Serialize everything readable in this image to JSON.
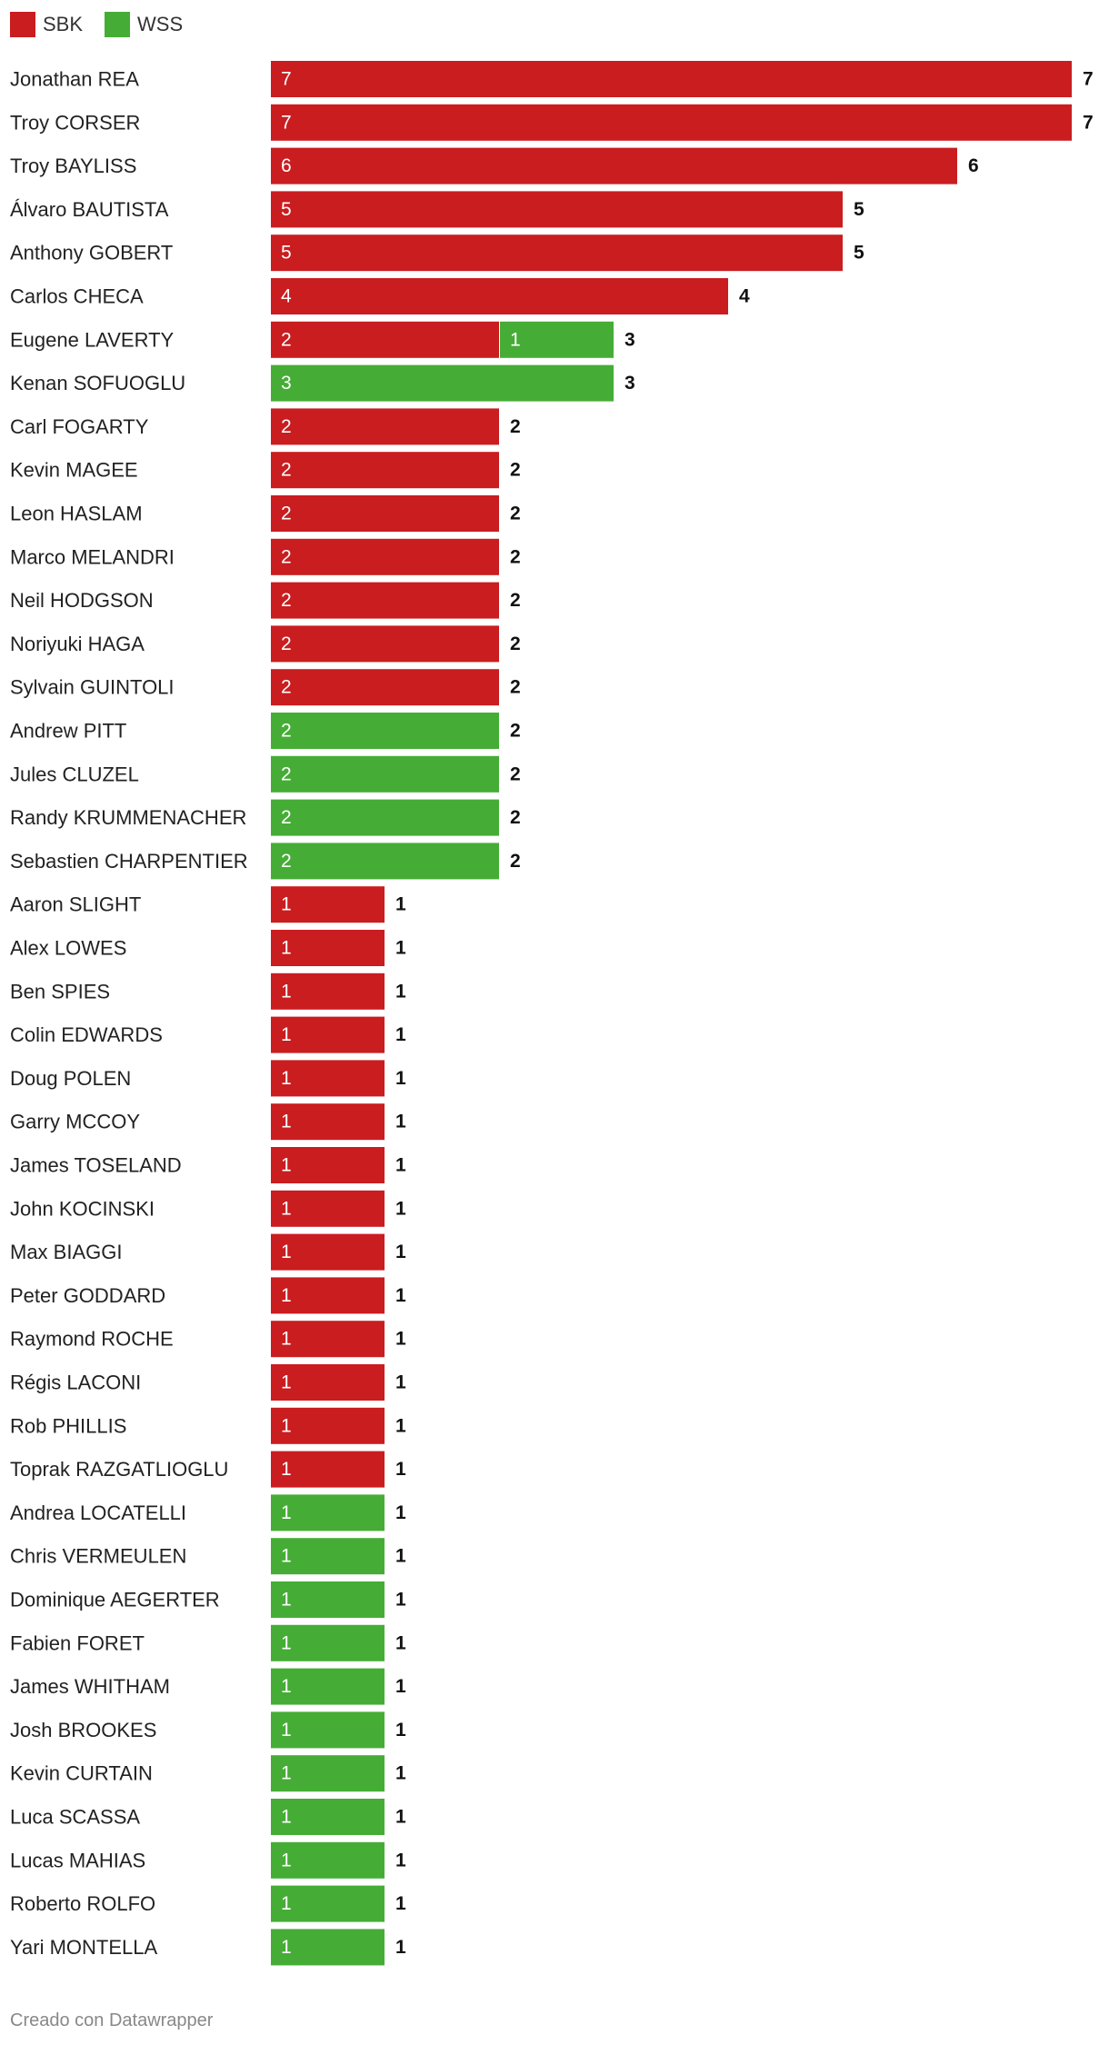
{
  "legend": [
    {
      "name": "SBK",
      "color": "#c91d20"
    },
    {
      "name": "WSS",
      "color": "#45ad35"
    }
  ],
  "footer": {
    "credit": "Creado con Datawrapper"
  },
  "chart_data": {
    "type": "bar",
    "orientation": "horizontal",
    "stacked": true,
    "categories": [
      "Jonathan REA",
      "Troy CORSER",
      "Troy BAYLISS",
      "Álvaro BAUTISTA",
      "Anthony GOBERT",
      "Carlos CHECA",
      "Eugene LAVERTY",
      "Kenan SOFUOGLU",
      "Carl FOGARTY",
      "Kevin MAGEE",
      "Leon HASLAM",
      "Marco MELANDRI",
      "Neil HODGSON",
      "Noriyuki HAGA",
      "Sylvain GUINTOLI",
      "Andrew PITT",
      "Jules CLUZEL",
      "Randy KRUMMENACHER",
      "Sebastien CHARPENTIER",
      "Aaron SLIGHT",
      "Alex LOWES",
      "Ben SPIES",
      "Colin EDWARDS",
      "Doug POLEN",
      "Garry MCCOY",
      "James TOSELAND",
      "John KOCINSKI",
      "Max BIAGGI",
      "Peter GODDARD",
      "Raymond ROCHE",
      "Régis LACONI",
      "Rob PHILLIS",
      "Toprak RAZGATLIOGLU",
      "Andrea LOCATELLI",
      "Chris VERMEULEN",
      "Dominique AEGERTER",
      "Fabien FORET",
      "James WHITHAM",
      "Josh BROOKES",
      "Kevin CURTAIN",
      "Luca SCASSA",
      "Lucas MAHIAS",
      "Roberto ROLFO",
      "Yari MONTELLA"
    ],
    "series": [
      {
        "name": "SBK",
        "color": "#c91d20",
        "values": [
          7,
          7,
          6,
          5,
          5,
          4,
          2,
          0,
          2,
          2,
          2,
          2,
          2,
          2,
          2,
          0,
          0,
          0,
          0,
          1,
          1,
          1,
          1,
          1,
          1,
          1,
          1,
          1,
          1,
          1,
          1,
          1,
          1,
          0,
          0,
          0,
          0,
          0,
          0,
          0,
          0,
          0,
          0,
          0
        ]
      },
      {
        "name": "WSS",
        "color": "#45ad35",
        "values": [
          0,
          0,
          0,
          0,
          0,
          0,
          1,
          3,
          0,
          0,
          0,
          0,
          0,
          0,
          0,
          2,
          2,
          2,
          2,
          0,
          0,
          0,
          0,
          0,
          0,
          0,
          0,
          0,
          0,
          0,
          0,
          0,
          0,
          1,
          1,
          1,
          1,
          1,
          1,
          1,
          1,
          1,
          1,
          1
        ]
      }
    ],
    "totals": [
      7,
      7,
      6,
      5,
      5,
      4,
      3,
      3,
      2,
      2,
      2,
      2,
      2,
      2,
      2,
      2,
      2,
      2,
      2,
      1,
      1,
      1,
      1,
      1,
      1,
      1,
      1,
      1,
      1,
      1,
      1,
      1,
      1,
      1,
      1,
      1,
      1,
      1,
      1,
      1,
      1,
      1,
      1,
      1
    ],
    "xlim": [
      0,
      7
    ],
    "grid": false,
    "legend_position": "top-left"
  }
}
